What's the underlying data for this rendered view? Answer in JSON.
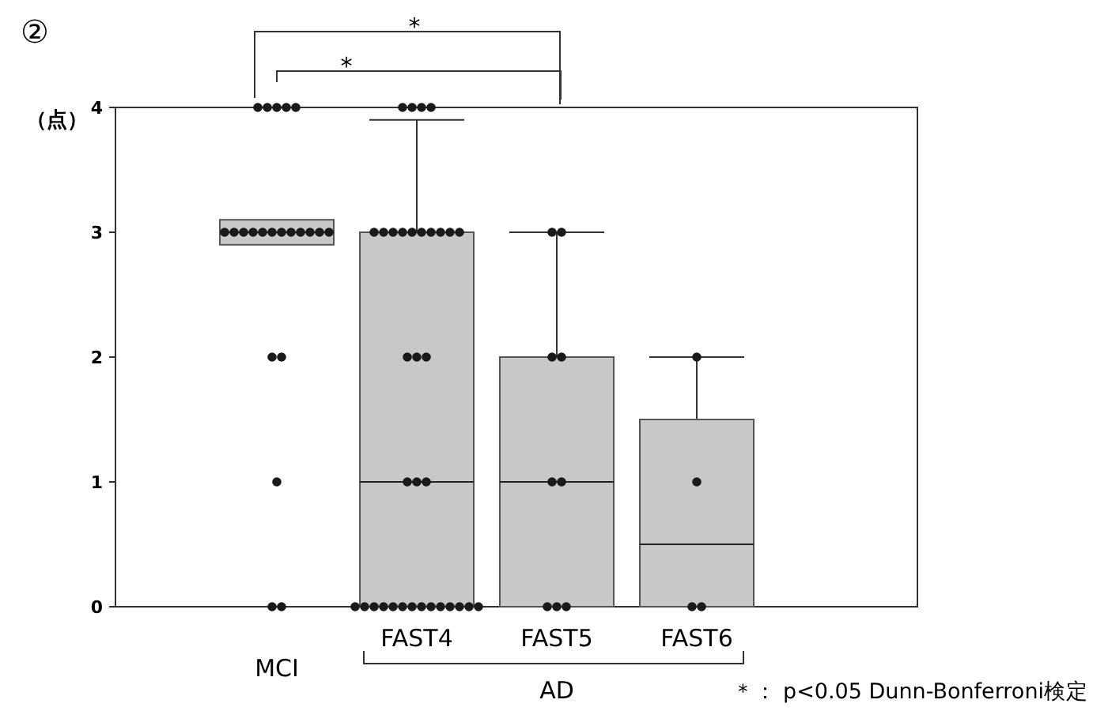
{
  "chart_data": {
    "type": "box",
    "ylabel": "（点）",
    "categories": [
      "MCI",
      "FAST4",
      "FAST5",
      "FAST6"
    ],
    "ylim": [
      0,
      4
    ],
    "yticks": [
      0,
      1,
      2,
      3,
      4
    ],
    "grid": false,
    "marker": "circle",
    "series": [
      {
        "type": "box",
        "color": "#c8c8c8",
        "boxes": [
          {
            "low": 2.9,
            "q1": 2.9,
            "median": 3,
            "q3": 3.1,
            "high": 3.1
          },
          {
            "low": 0,
            "q1": 0,
            "median": 1,
            "q3": 3,
            "high": 3.9
          },
          {
            "low": 0,
            "q1": 0,
            "median": 1,
            "q3": 2,
            "high": 3
          },
          {
            "low": 0,
            "q1": 0,
            "median": 0.5,
            "q3": 1.5,
            "high": 2
          }
        ]
      },
      {
        "type": "scatter",
        "color": "#1a1a1a",
        "x": [
          "MCI",
          "MCI",
          "MCI",
          "MCI",
          "MCI",
          "MCI",
          "MCI",
          "MCI",
          "MCI",
          "MCI",
          "MCI",
          "MCI",
          "MCI",
          "MCI",
          "MCI",
          "MCI",
          "MCI",
          "MCI",
          "MCI",
          "MCI",
          "MCI",
          "MCI",
          "FAST4",
          "FAST4",
          "FAST4",
          "FAST4",
          "FAST4",
          "FAST4",
          "FAST4",
          "FAST4",
          "FAST4",
          "FAST4",
          "FAST4",
          "FAST4",
          "FAST4",
          "FAST4",
          "FAST4",
          "FAST4",
          "FAST4",
          "FAST4",
          "FAST4",
          "FAST4",
          "FAST4",
          "FAST4",
          "FAST4",
          "FAST4",
          "FAST4",
          "FAST4",
          "FAST4",
          "FAST4",
          "FAST4",
          "FAST4",
          "FAST4",
          "FAST4",
          "FAST4",
          "FAST4",
          "FAST5",
          "FAST5",
          "FAST5",
          "FAST5",
          "FAST5",
          "FAST5",
          "FAST5",
          "FAST5",
          "FAST5",
          "FAST6",
          "FAST6",
          "FAST6",
          "FAST6"
        ],
        "values": [
          4,
          4,
          4,
          4,
          4,
          3,
          3,
          3,
          3,
          3,
          3,
          3,
          3,
          3,
          3,
          3,
          3,
          2,
          2,
          1,
          0,
          0,
          4,
          4,
          4,
          4,
          3,
          3,
          3,
          3,
          3,
          3,
          3,
          3,
          3,
          3,
          2,
          2,
          2,
          1,
          1,
          1,
          0,
          0,
          0,
          0,
          0,
          0,
          0,
          0,
          0,
          0,
          0,
          0,
          0,
          0,
          3,
          3,
          2,
          2,
          1,
          1,
          0,
          0,
          0,
          2,
          1,
          0,
          0
        ]
      }
    ],
    "annotations": [
      "②",
      "*",
      "*",
      "AD",
      "＊： p<0.05 Dunn-Bonferroni検定"
    ]
  }
}
